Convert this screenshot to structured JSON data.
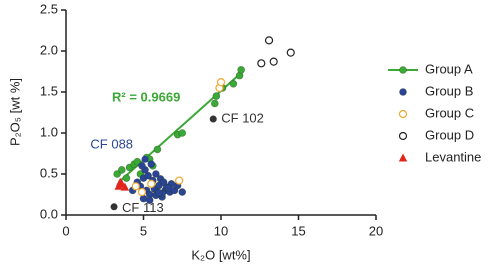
{
  "chart_data": {
    "type": "scatter",
    "xlabel": "K₂O [wt%]",
    "ylabel": "P₂O₅ [wt %]",
    "annotation": "R² = 0.9669",
    "xlim": [
      0,
      20
    ],
    "ylim": [
      0,
      2.5
    ],
    "xticks": [
      0,
      5,
      10,
      15,
      20
    ],
    "yticks": [
      {
        "value": 0,
        "label": "0.0"
      },
      0.5,
      {
        "value": 1,
        "label": "1.0"
      },
      1.5,
      {
        "value": 2,
        "label": "2.0"
      },
      2.5
    ],
    "series": [
      {
        "name": "Group A",
        "color": "#3aa935",
        "marker": "filled",
        "line": true,
        "x": [
          3.3,
          3.6,
          3.9,
          4.1,
          4.4,
          4.6,
          4.8,
          5.2,
          5.4,
          5.6,
          5.9,
          7.2,
          7.5,
          9.6,
          9.7,
          10.1,
          10.8,
          11.2,
          11.3
        ],
        "values": [
          0.5,
          0.55,
          0.45,
          0.58,
          0.62,
          0.65,
          0.5,
          0.7,
          0.68,
          0.6,
          0.8,
          0.98,
          1.0,
          1.36,
          1.45,
          1.55,
          1.6,
          1.7,
          1.77
        ]
      },
      {
        "name": "Group B",
        "color": "#2b4496",
        "marker": "filled",
        "x": [
          4.3,
          4.6,
          4.8,
          5.0,
          5.1,
          5.2,
          5.3,
          5.4,
          5.5,
          5.6,
          5.7,
          5.8,
          5.9,
          6.0,
          6.1,
          6.2,
          6.3,
          6.4,
          6.5,
          6.7,
          6.8,
          7.0,
          7.2,
          7.5,
          5.0,
          5.4,
          5.8,
          6.2,
          6.6,
          4.9,
          5.5,
          6.0
        ],
        "values": [
          0.3,
          0.4,
          0.35,
          0.45,
          0.55,
          0.3,
          0.48,
          0.25,
          0.38,
          0.42,
          0.32,
          0.5,
          0.28,
          0.36,
          0.44,
          0.22,
          0.4,
          0.3,
          0.34,
          0.28,
          0.38,
          0.3,
          0.36,
          0.28,
          0.2,
          0.18,
          0.24,
          0.26,
          0.33,
          0.6,
          0.62,
          0.27
        ]
      },
      {
        "name": "Group C",
        "color": "#f2a72e",
        "marker": "open",
        "x": [
          4.5,
          4.9,
          5.5,
          7.3,
          9.9,
          10.0
        ],
        "values": [
          0.35,
          0.28,
          0.38,
          0.42,
          1.55,
          1.62
        ]
      },
      {
        "name": "Group D",
        "color": "#222222",
        "marker": "open",
        "x": [
          12.6,
          13.1,
          13.4,
          14.5
        ],
        "values": [
          1.85,
          2.13,
          1.87,
          1.98
        ]
      },
      {
        "name": "Levantine",
        "color": "#e3261c",
        "marker": "triangle",
        "x": [
          3.4,
          3.5,
          3.6,
          3.8
        ],
        "values": [
          0.35,
          0.4,
          0.38,
          0.34
        ]
      }
    ],
    "trendline": {
      "color": "#3aa935",
      "x": [
        3.4,
        11.4
      ],
      "values": [
        0.4,
        1.75
      ]
    },
    "labeled_points": [
      {
        "text": "CF 102",
        "x": 9.5,
        "y": 1.17,
        "color": "#333333"
      },
      {
        "text": "CF 088",
        "x": 5.1,
        "y": 0.68,
        "color": "#2b4496"
      },
      {
        "text": "CF 113",
        "x": 3.1,
        "y": 0.1,
        "color": "#333333"
      }
    ]
  }
}
